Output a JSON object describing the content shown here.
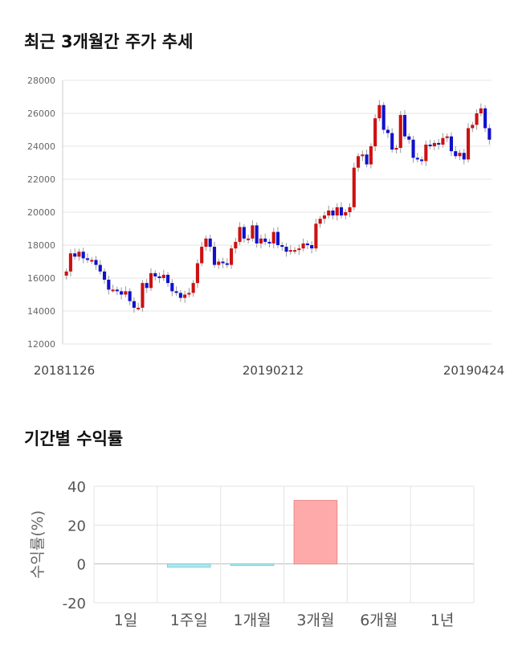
{
  "section1_title": "최근 3개월간 주가 추세",
  "section2_title": "기간별 수익률",
  "chart_data": [
    {
      "type": "candlestick",
      "title": "최근 3개월간 주가 추세",
      "ylim": [
        12000,
        28000
      ],
      "y_ticks": [
        "28000",
        "26000",
        "24000",
        "22000",
        "20000",
        "18000",
        "16000",
        "14000",
        "12000"
      ],
      "x_tick_labels": [
        "20181126",
        "20190212",
        "20190424"
      ],
      "colors": {
        "up": "#cc1111",
        "down": "#1111cc",
        "wick": "#999999",
        "grid": "#e6e6e6"
      },
      "closes": [
        16400,
        17500,
        17300,
        17600,
        17200,
        17100,
        17100,
        16800,
        16400,
        15900,
        15300,
        15300,
        15200,
        15000,
        15200,
        14600,
        14200,
        14200,
        15700,
        15400,
        16300,
        16100,
        16000,
        16200,
        15700,
        15200,
        15100,
        14800,
        15000,
        15100,
        15700,
        16900,
        17900,
        18400,
        17900,
        16800,
        17000,
        16900,
        16800,
        17800,
        18200,
        19100,
        18400,
        18400,
        19200,
        18100,
        18400,
        18200,
        18100,
        18800,
        18000,
        17900,
        17600,
        17700,
        17700,
        17800,
        18100,
        18000,
        17800,
        19300,
        19600,
        19800,
        20100,
        19800,
        20300,
        19800,
        20000,
        20300,
        22700,
        23400,
        23500,
        22900,
        24000,
        25700,
        26500,
        25000,
        24800,
        23800,
        23900,
        25900,
        24600,
        24400,
        23300,
        23200,
        23100,
        24100,
        24000,
        24200,
        24100,
        24500,
        24600,
        23700,
        23400,
        23600,
        23200,
        25100,
        25300,
        26000,
        26300,
        25100,
        24400
      ],
      "x_range": [
        "20181126",
        "20190424"
      ]
    },
    {
      "type": "bar",
      "title": "기간별 수익률",
      "ylabel": "수익률(%)",
      "ylim": [
        -20,
        40
      ],
      "y_ticks": [
        "40",
        "20",
        "0",
        "-20"
      ],
      "categories": [
        "1일",
        "1주일",
        "1개월",
        "3개월",
        "6개월",
        "1년"
      ],
      "values": [
        null,
        -1.7,
        -0.2,
        32.7,
        null,
        null
      ],
      "colors": {
        "positive": "#ffaaaa",
        "positive_stroke": "#e88888",
        "negative": "#aee8ef",
        "negative_stroke": "#7fd0dc"
      }
    }
  ]
}
